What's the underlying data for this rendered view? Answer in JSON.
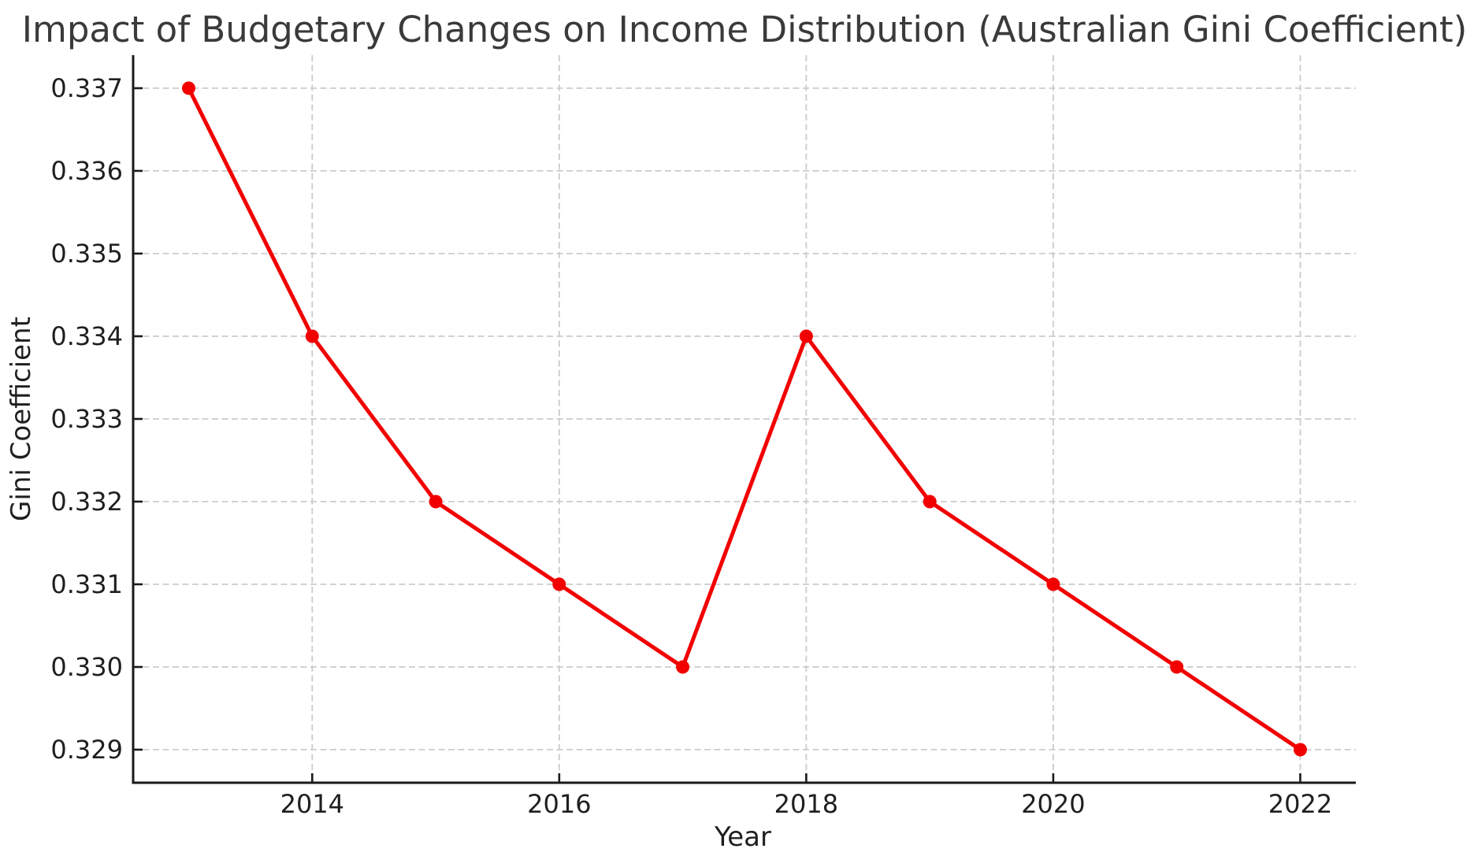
{
  "chart_data": {
    "type": "line",
    "title": "Impact of Budgetary Changes on Income Distribution (Australian Gini Coefficient)",
    "xlabel": "Year",
    "ylabel": "Gini Coefficient",
    "x": [
      2013,
      2014,
      2015,
      2016,
      2017,
      2018,
      2019,
      2020,
      2021,
      2022
    ],
    "series": [
      {
        "name": "Gini Coefficient",
        "color": "#f20000",
        "marker": "circle",
        "values": [
          0.337,
          0.334,
          0.332,
          0.331,
          0.33,
          0.334,
          0.332,
          0.331,
          0.33,
          0.329
        ]
      }
    ],
    "x_tick_values": [
      2014,
      2016,
      2018,
      2020,
      2022
    ],
    "x_tick_labels": [
      "2014",
      "2016",
      "2018",
      "2020",
      "2022"
    ],
    "y_tick_values": [
      0.329,
      0.33,
      0.331,
      0.332,
      0.333,
      0.334,
      0.335,
      0.336,
      0.337
    ],
    "y_tick_labels": [
      "0.329",
      "0.330",
      "0.331",
      "0.332",
      "0.333",
      "0.334",
      "0.335",
      "0.336",
      "0.337"
    ],
    "xlim": [
      2012.55,
      2022.45
    ],
    "ylim": [
      0.3286,
      0.3374
    ],
    "grid": "dashed",
    "legend": "none"
  },
  "style": {
    "line_color": "#f20000",
    "marker_color": "#f20000",
    "grid_color": "#cbcbcb",
    "spine_color": "#1a1a1a",
    "tick_color": "#1a1a1a",
    "text_color": "#1f1f1f",
    "title_color": "#3a3a3a",
    "background": "#ffffff"
  }
}
